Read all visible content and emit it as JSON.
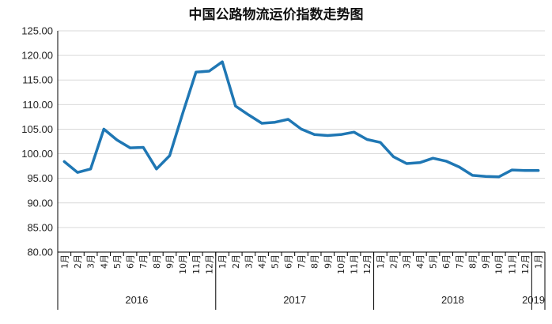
{
  "chart_data": {
    "type": "line",
    "title": "中国公路物流运价指数走势图",
    "ylim": [
      80.0,
      125.0
    ],
    "y_ticks": [
      "125.00",
      "120.00",
      "115.00",
      "110.00",
      "105.00",
      "100.00",
      "95.00",
      "90.00",
      "85.00",
      "80.00"
    ],
    "month_suffix": "月",
    "categories": [
      "1",
      "2",
      "3",
      "4",
      "5",
      "6",
      "7",
      "8",
      "9",
      "10",
      "11",
      "12",
      "1",
      "2",
      "3",
      "4",
      "5",
      "6",
      "7",
      "8",
      "9",
      "10",
      "11",
      "12",
      "1",
      "2",
      "3",
      "4",
      "5",
      "6",
      "7",
      "8",
      "9",
      "10",
      "11",
      "12",
      "1"
    ],
    "year_groups": [
      {
        "label": "2016",
        "count": 12
      },
      {
        "label": "2017",
        "count": 12
      },
      {
        "label": "2018",
        "count": 12
      },
      {
        "label": "2019",
        "count": 1
      }
    ],
    "series": [
      {
        "values": [
          98.4,
          96.2,
          96.9,
          105.0,
          102.8,
          101.2,
          101.3,
          96.9,
          99.6,
          108.3,
          116.6,
          116.8,
          118.7,
          109.7,
          107.9,
          106.2,
          106.4,
          107.0,
          105.0,
          103.9,
          103.7,
          103.9,
          104.4,
          102.9,
          102.3,
          99.4,
          98.0,
          98.2,
          99.1,
          98.5,
          97.3,
          95.6,
          95.4,
          95.3,
          96.7,
          96.6,
          96.6
        ],
        "color": "#1f77b4"
      }
    ]
  }
}
